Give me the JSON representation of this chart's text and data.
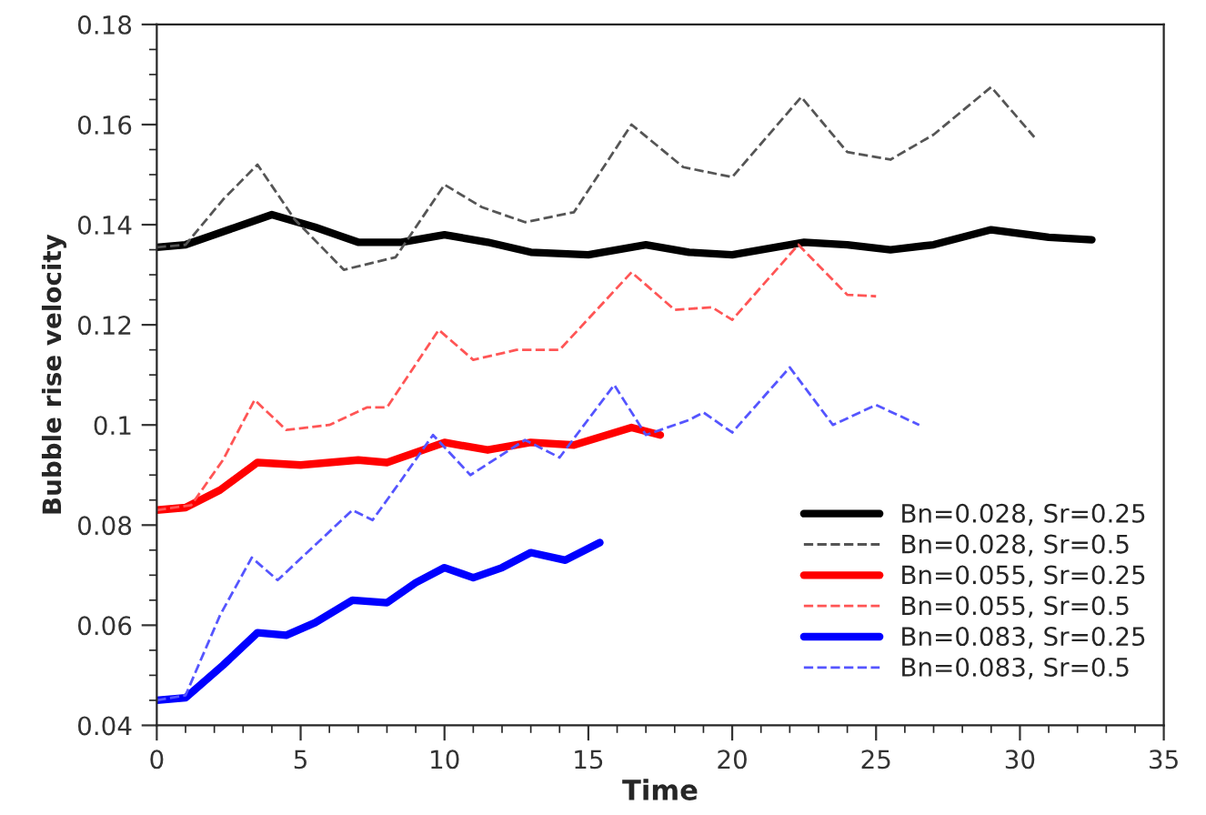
{
  "chart_data": {
    "type": "line",
    "xlabel": "Time",
    "ylabel": "Bubble rise velocity",
    "xlim": [
      0,
      35
    ],
    "xticks": [
      0,
      5,
      10,
      15,
      20,
      25,
      30,
      35
    ],
    "ylim": [
      0.04,
      0.18
    ],
    "yticks": [
      0.04,
      0.06,
      0.08,
      0.1,
      0.12,
      0.14,
      0.16,
      0.18
    ],
    "grid": false,
    "legend": "bottom right",
    "series": [
      {
        "name": "Bn=0.028, Sr=0.25",
        "color": "#000000",
        "line_style": "solid",
        "x": [
          0,
          1,
          2.5,
          4,
          5.5,
          7,
          8.5,
          10,
          11.5,
          13,
          15,
          17,
          18.5,
          20,
          22.5,
          24,
          25.5,
          27,
          29,
          31,
          32.5
        ],
        "values": [
          0.1355,
          0.136,
          0.139,
          0.142,
          0.1395,
          0.1365,
          0.1365,
          0.138,
          0.1365,
          0.1345,
          0.134,
          0.136,
          0.1345,
          0.134,
          0.1365,
          0.136,
          0.135,
          0.136,
          0.139,
          0.1375,
          0.137
        ]
      },
      {
        "name": "Bn=0.028, Sr=0.5",
        "color": "#555555",
        "line_style": "dashed",
        "x": [
          0,
          1,
          2.3,
          3.5,
          4.8,
          6.5,
          8.3,
          10,
          11.3,
          12.8,
          14.5,
          16.5,
          18.3,
          20,
          22.4,
          24,
          25.5,
          27,
          29,
          30.5
        ],
        "values": [
          0.1355,
          0.136,
          0.145,
          0.152,
          0.141,
          0.131,
          0.1335,
          0.148,
          0.1435,
          0.1405,
          0.1425,
          0.16,
          0.1515,
          0.1495,
          0.1655,
          0.1545,
          0.153,
          0.158,
          0.1675,
          0.1575
        ]
      },
      {
        "name": "Bn=0.055, Sr=0.25",
        "color": "#ff0000",
        "line_style": "solid",
        "x": [
          0,
          1,
          2.2,
          3.5,
          5,
          7,
          8,
          10,
          11.5,
          13,
          14.5,
          16.5,
          17.5
        ],
        "values": [
          0.083,
          0.0835,
          0.087,
          0.0925,
          0.092,
          0.093,
          0.0925,
          0.0965,
          0.095,
          0.0965,
          0.096,
          0.0995,
          0.098
        ]
      },
      {
        "name": "Bn=0.055, Sr=0.5",
        "color": "#ff5555",
        "line_style": "dashed",
        "x": [
          0,
          1.2,
          2.3,
          3.4,
          4.5,
          6,
          7.3,
          8,
          9.8,
          11,
          12.5,
          14,
          16.5,
          18,
          19.3,
          20,
          22.3,
          24,
          25
        ],
        "values": [
          0.083,
          0.084,
          0.093,
          0.105,
          0.099,
          0.1,
          0.1035,
          0.1035,
          0.119,
          0.113,
          0.115,
          0.115,
          0.1305,
          0.123,
          0.1235,
          0.121,
          0.136,
          0.126,
          0.1257
        ]
      },
      {
        "name": "Bn=0.083, Sr=0.25",
        "color": "#0000ff",
        "line_style": "solid",
        "x": [
          0,
          1,
          2.3,
          3.5,
          4.5,
          5.5,
          6.8,
          8,
          9,
          10,
          11,
          12,
          13,
          14.2,
          15.4
        ],
        "values": [
          0.045,
          0.0455,
          0.052,
          0.0585,
          0.058,
          0.0605,
          0.065,
          0.0645,
          0.0685,
          0.0715,
          0.0695,
          0.0715,
          0.0745,
          0.073,
          0.0765
        ]
      },
      {
        "name": "Bn=0.083, Sr=0.5",
        "color": "#5555ff",
        "line_style": "dashed",
        "x": [
          0,
          1,
          2.2,
          3.3,
          4.2,
          5.5,
          6.8,
          7.5,
          8.5,
          9.6,
          10.9,
          12.8,
          14,
          15.9,
          17,
          18.5,
          19,
          20,
          22,
          23.5,
          25,
          26.5
        ],
        "values": [
          0.045,
          0.046,
          0.062,
          0.0735,
          0.069,
          0.076,
          0.083,
          0.081,
          0.089,
          0.098,
          0.09,
          0.097,
          0.0935,
          0.108,
          0.098,
          0.101,
          0.1025,
          0.0985,
          0.1115,
          0.1,
          0.104,
          0.1
        ]
      }
    ]
  }
}
